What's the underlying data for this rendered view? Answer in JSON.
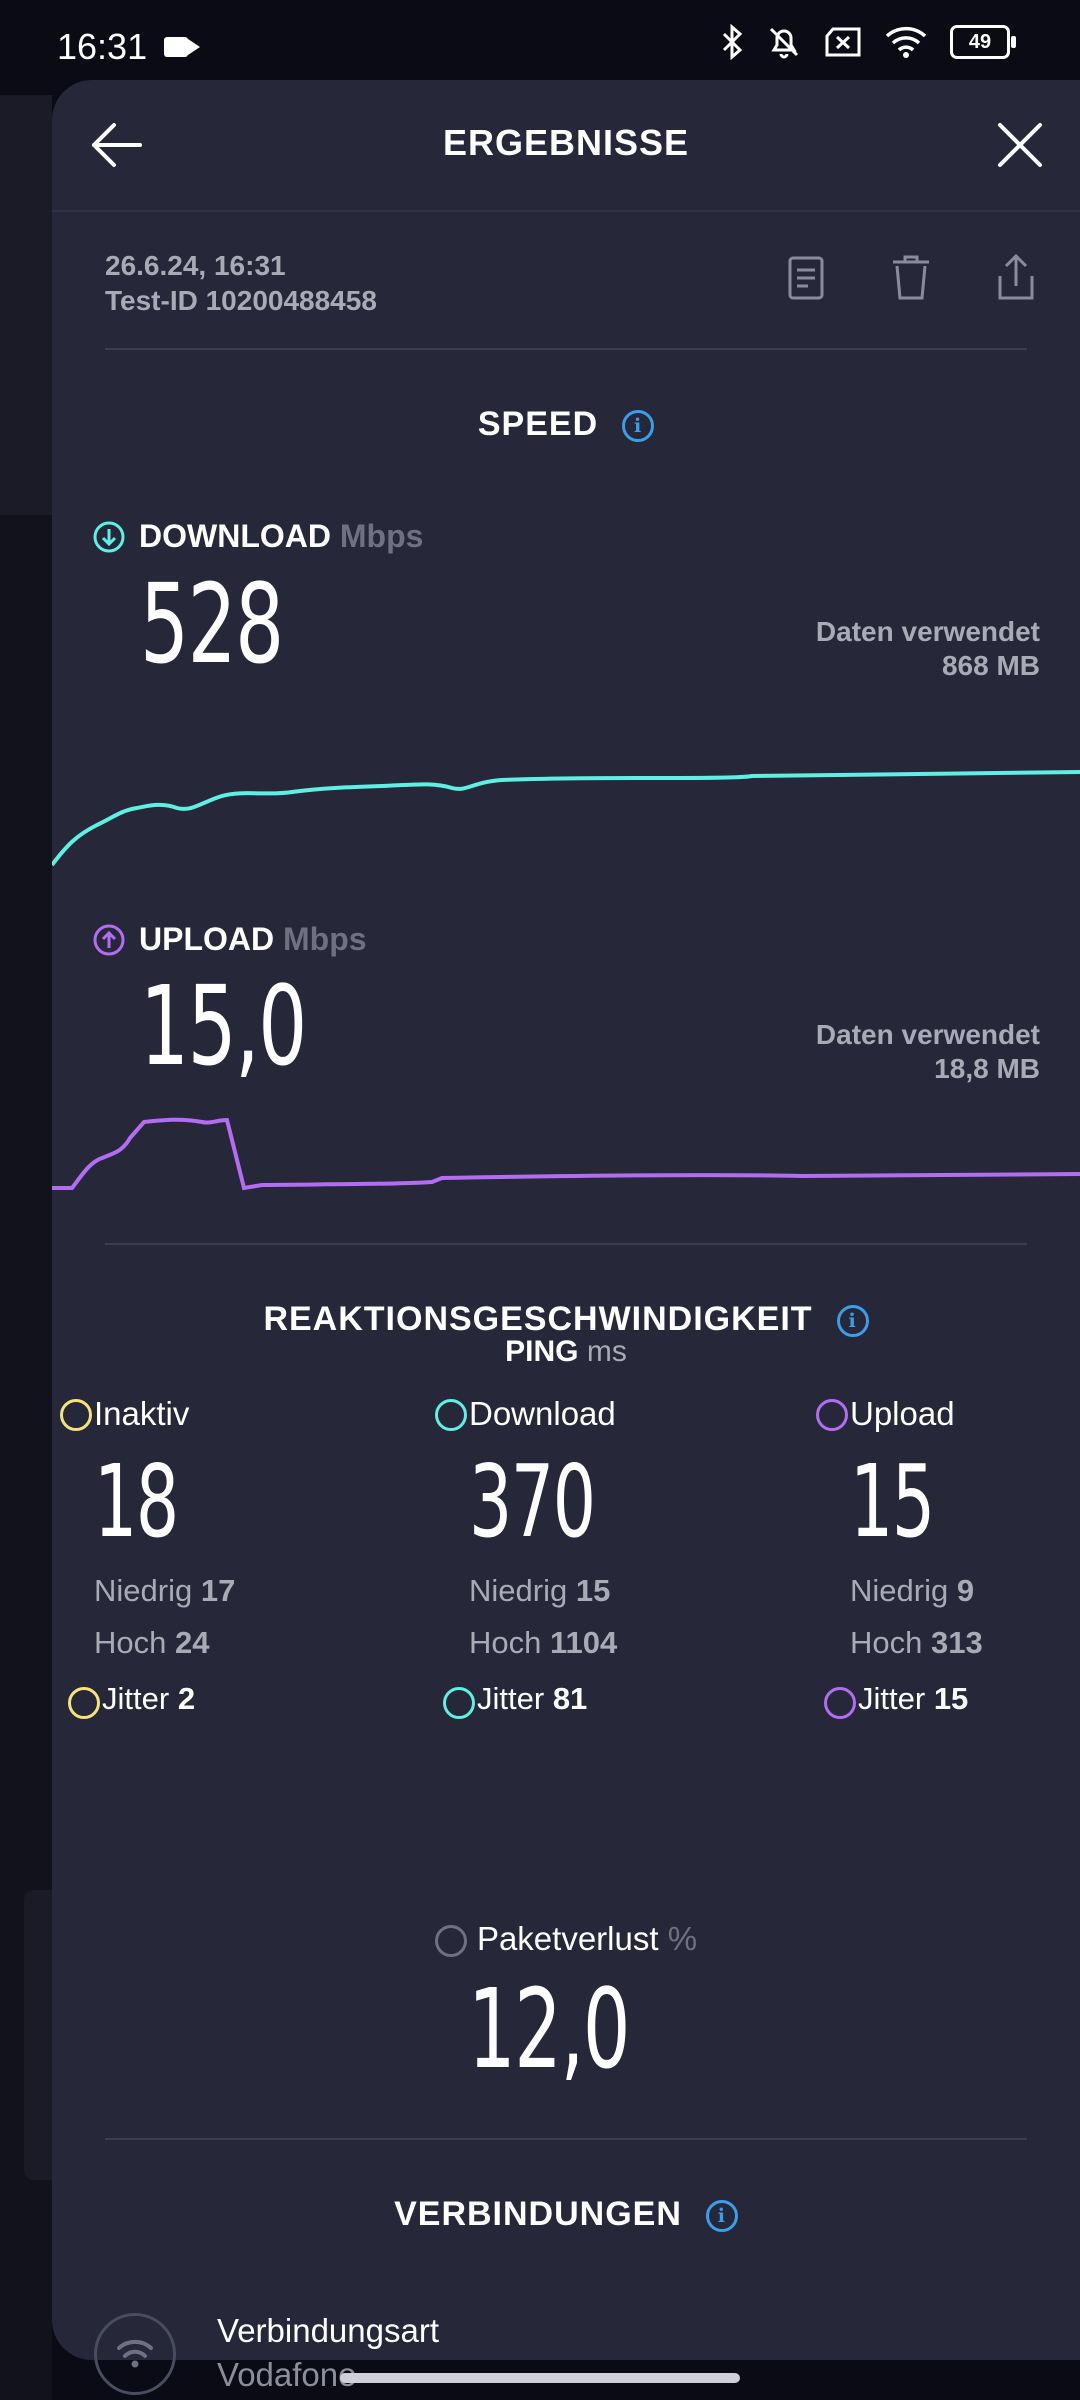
{
  "status_bar": {
    "time": "16:31",
    "battery": "49",
    "icons": [
      "video-camera-icon",
      "bluetooth-icon",
      "bell-off-icon",
      "no-sim-icon",
      "wifi-icon",
      "battery-icon"
    ]
  },
  "header": {
    "title": "ERGEBNISSE"
  },
  "test_meta": {
    "date": "26.6.24, 16:31",
    "test_id": "Test-ID 10200488458"
  },
  "speed": {
    "title": "SPEED",
    "download": {
      "label": "DOWNLOAD",
      "unit": "Mbps",
      "value": "528",
      "data_used_label": "Daten verwendet",
      "data_used_value": "868 MB",
      "color": "#5ef0e3"
    },
    "upload": {
      "label": "UPLOAD",
      "unit": "Mbps",
      "value": "15,0",
      "data_used_label": "Daten verwendet",
      "data_used_value": "18,8 MB",
      "color": "#b36df2"
    }
  },
  "responsiveness": {
    "title": "REAKTIONSGESCHWINDIGKEIT",
    "ping_label": "PING",
    "ping_unit": "ms",
    "columns": [
      {
        "title": "Inaktiv",
        "value": "18",
        "low_label": "Niedrig",
        "low": "17",
        "high_label": "Hoch",
        "high": "24",
        "jitter_label": "Jitter",
        "jitter": "2",
        "color": "#f5e27a"
      },
      {
        "title": "Download",
        "value": "370",
        "low_label": "Niedrig",
        "low": "15",
        "high_label": "Hoch",
        "high": "1104",
        "jitter_label": "Jitter",
        "jitter": "81",
        "color": "#5ef0e3"
      },
      {
        "title": "Upload",
        "value": "15",
        "low_label": "Niedrig",
        "low": "9",
        "high_label": "Hoch",
        "high": "313",
        "jitter_label": "Jitter",
        "jitter": "15",
        "color": "#b36df2"
      }
    ],
    "packet_loss_label": "Paketverlust",
    "packet_loss_unit": "%",
    "packet_loss_value": "12,0"
  },
  "connections": {
    "title": "VERBINDUNGEN",
    "type_label": "Verbindungsart",
    "type_value": "Vodafone"
  }
}
